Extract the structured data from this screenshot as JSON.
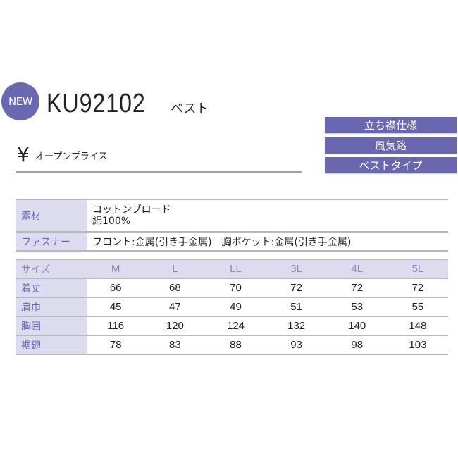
{
  "badge": "NEW",
  "product": {
    "code": "KU92102",
    "type": "ベスト",
    "currency": "¥",
    "price": "オープンプライス"
  },
  "tags": [
    "立ち襟仕様",
    "風気路",
    "ベストタイプ"
  ],
  "spec": {
    "material_label": "素材",
    "material_lines": [
      "コットンブロード",
      "綿100%"
    ],
    "fastener_label": "ファスナー",
    "fastener": "フロント:金属(引き手金属)　胸ポケット:金属(引き手金属)"
  },
  "size_table": {
    "header": "サイズ",
    "sizes": [
      "M",
      "L",
      "LL",
      "3L",
      "4L",
      "5L"
    ],
    "rows": [
      {
        "label": "着丈",
        "values": [
          "66",
          "68",
          "70",
          "72",
          "72",
          "72"
        ]
      },
      {
        "label": "肩巾",
        "values": [
          "45",
          "47",
          "49",
          "51",
          "53",
          "55"
        ]
      },
      {
        "label": "胸囲",
        "values": [
          "116",
          "120",
          "124",
          "132",
          "140",
          "148"
        ]
      },
      {
        "label": "裾廻",
        "values": [
          "78",
          "83",
          "88",
          "93",
          "98",
          "103"
        ]
      }
    ]
  },
  "colors": {
    "accent": "#6a66b0",
    "label_bg": "#dcdcee"
  }
}
